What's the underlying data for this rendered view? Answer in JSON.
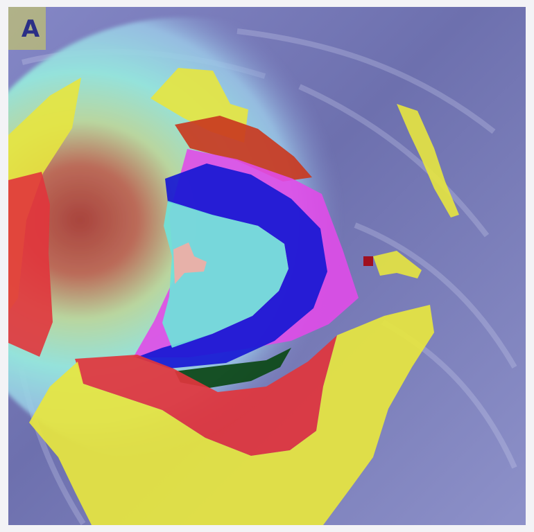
{
  "figure": {
    "panel_label": "A",
    "colors": {
      "background": "#6c6da6",
      "heatmap_low": "#7e83c4",
      "heatmap_mid": "#9de3dc",
      "heatmap_high": "#a8463e",
      "region_yellow": "#e7e63f",
      "region_red": "#e1353c",
      "region_magenta": "#e04be8",
      "region_blue": "#1718d4",
      "region_cyan": "#6fe2da",
      "region_dark_green": "#0f4a1a",
      "region_orange_red": "#c93a1f",
      "region_pink": "#f1aea5"
    }
  }
}
